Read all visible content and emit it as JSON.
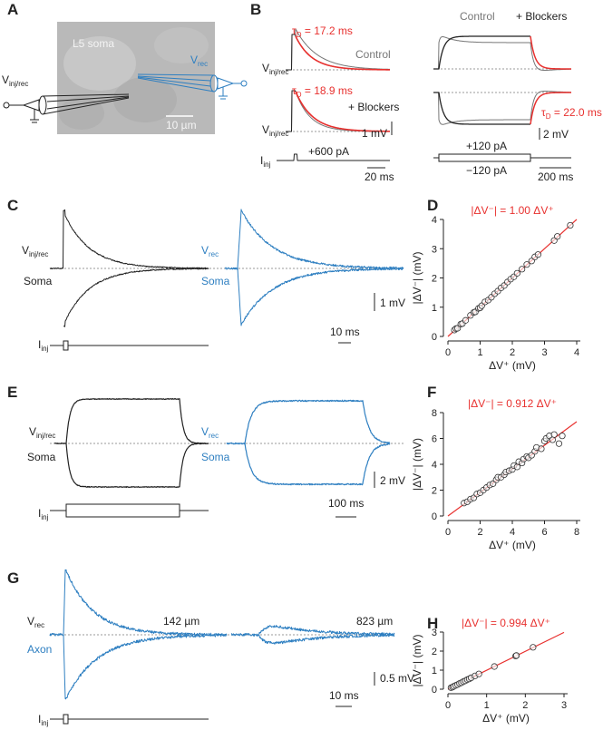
{
  "panel_labels": [
    "A",
    "B",
    "C",
    "D",
    "E",
    "F",
    "G",
    "H"
  ],
  "panel_a": {
    "soma": "L5 soma",
    "v_inj": "V",
    "v_inj_sub": "inj/rec",
    "v_rec": "V",
    "v_rec_sub": "rec",
    "scale": "10 µm"
  },
  "panel_b": {
    "tau1": "τ",
    "tau1_sub": "D",
    "tau1_val": " = 17.2 ms",
    "control": "Control",
    "v1": "V",
    "v1_sub": "inj/rec",
    "tau2": "τ",
    "tau2_sub": "D",
    "tau2_val": " = 18.9 ms",
    "blockers": "+ Blockers",
    "v2": "V",
    "v2_sub": "inj/rec",
    "scale_mv": "1 mV",
    "i": "I",
    "i_sub": "inj",
    "current": "+600 pA",
    "scale_ms": "20 ms",
    "control_r": "Control",
    "blockers_r": "+ Blockers",
    "tau3": "τ",
    "tau3_sub": "D",
    "tau3_val": " = 22.0 ms",
    "scale_mv_r": "2 mV",
    "current_pos": "+120 pA",
    "current_neg": "−120 pA",
    "scale_ms_r": "200 ms"
  },
  "panel_c": {
    "v": "V",
    "v_sub": "inj/rec",
    "soma": "Soma",
    "v2": "V",
    "v2_sub": "rec",
    "soma2": "Soma",
    "scale_mv": "1 mV",
    "scale_ms": "10 ms",
    "i": "I",
    "i_sub": "inj"
  },
  "panel_e": {
    "v": "V",
    "v_sub": "inj/rec",
    "soma": "Soma",
    "v2": "V",
    "v2_sub": "rec",
    "soma2": "Soma",
    "scale_mv": "2 mV",
    "scale_ms": "100 ms",
    "i": "I",
    "i_sub": "inj"
  },
  "panel_g": {
    "v": "V",
    "v_sub": "rec",
    "axon": "Axon",
    "dist1": "142 µm",
    "dist2": "823 µm",
    "scale_mv": "0.5 mV",
    "scale_ms": "10 ms",
    "i": "I",
    "i_sub": "inj"
  },
  "chart_data": [
    {
      "type": "scatter",
      "title": "|ΔV⁻| = 1.00 ΔV⁺",
      "xlabel": "ΔV⁺ (mV)",
      "ylabel": "|ΔV⁻| (mV)",
      "fit_slope": 1.0,
      "fit_color": "#e8312f",
      "x": [
        0.2,
        0.25,
        0.3,
        0.4,
        0.45,
        0.55,
        0.7,
        0.8,
        0.85,
        0.95,
        1.0,
        1.05,
        1.15,
        1.25,
        1.35,
        1.45,
        1.55,
        1.65,
        1.75,
        1.85,
        1.95,
        2.05,
        2.15,
        2.3,
        2.45,
        2.6,
        2.7,
        2.8,
        3.3,
        3.4,
        3.8
      ],
      "values": [
        0.22,
        0.27,
        0.28,
        0.42,
        0.44,
        0.55,
        0.72,
        0.82,
        0.84,
        0.96,
        0.98,
        1.05,
        1.18,
        1.24,
        1.34,
        1.46,
        1.55,
        1.66,
        1.74,
        1.86,
        1.96,
        2.04,
        2.16,
        2.3,
        2.46,
        2.58,
        2.72,
        2.8,
        3.28,
        3.42,
        3.8
      ],
      "xlim": [
        0,
        4
      ],
      "ylim": [
        0,
        4
      ],
      "xticks": [
        0,
        1,
        2,
        3,
        4
      ],
      "yticks": [
        0,
        1,
        2,
        3,
        4
      ]
    },
    {
      "type": "scatter",
      "title": "|ΔV⁻| = 0.912 ΔV⁺",
      "xlabel": "ΔV⁺ (mV)",
      "ylabel": "|ΔV⁻| (mV)",
      "fit_slope": 0.912,
      "fit_color": "#e8312f",
      "x": [
        1.0,
        1.2,
        1.4,
        1.6,
        1.8,
        2.0,
        2.2,
        2.4,
        2.6,
        2.8,
        3.0,
        3.1,
        3.3,
        3.5,
        3.6,
        3.8,
        4.0,
        4.1,
        4.3,
        4.4,
        4.6,
        4.7,
        4.9,
        5.0,
        5.2,
        5.4,
        5.5,
        5.8,
        6.0,
        6.1,
        6.3,
        6.5,
        6.6,
        6.9,
        7.1
      ],
      "values": [
        1.0,
        1.1,
        1.3,
        1.4,
        1.7,
        1.8,
        2.0,
        2.2,
        2.4,
        2.5,
        2.8,
        3.0,
        3.0,
        3.2,
        3.4,
        3.5,
        3.6,
        3.9,
        3.8,
        4.2,
        4.1,
        4.4,
        4.6,
        4.5,
        4.7,
        5.0,
        5.3,
        5.2,
        5.8,
        6.0,
        6.2,
        5.9,
        6.3,
        5.6,
        6.2
      ],
      "xlim": [
        0,
        8
      ],
      "ylim": [
        0,
        8
      ],
      "xticks": [
        0,
        2,
        4,
        6,
        8
      ],
      "yticks": [
        0,
        2,
        4,
        6,
        8
      ]
    },
    {
      "type": "scatter",
      "title": "|ΔV⁻| = 0.994 ΔV⁺",
      "xlabel": "ΔV⁺ (mV)",
      "ylabel": "|ΔV⁻| (mV)",
      "fit_slope": 0.994,
      "fit_color": "#e8312f",
      "x": [
        0.08,
        0.12,
        0.15,
        0.2,
        0.25,
        0.3,
        0.35,
        0.4,
        0.45,
        0.5,
        0.55,
        0.6,
        0.7,
        0.8,
        1.2,
        1.75,
        1.77,
        2.2
      ],
      "values": [
        0.08,
        0.11,
        0.15,
        0.2,
        0.24,
        0.3,
        0.34,
        0.4,
        0.44,
        0.5,
        0.54,
        0.6,
        0.7,
        0.8,
        1.19,
        1.74,
        1.77,
        2.2
      ],
      "xlim": [
        0,
        3
      ],
      "ylim": [
        0,
        3
      ],
      "xticks": [
        0,
        1,
        2,
        3
      ],
      "yticks": [
        0,
        1,
        2,
        3
      ]
    }
  ]
}
